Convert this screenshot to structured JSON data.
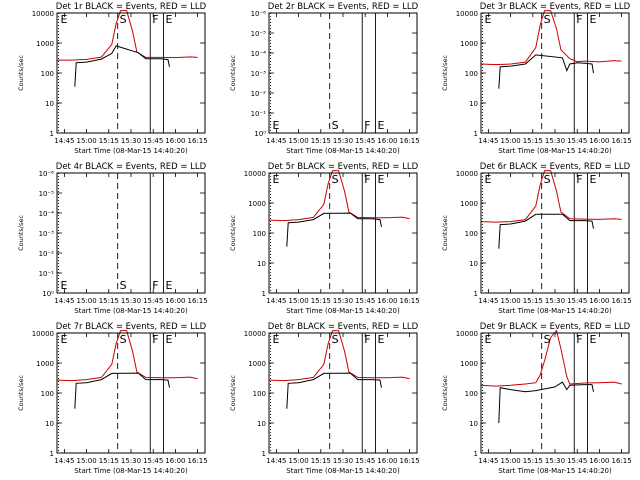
{
  "chart_data": [
    {
      "type": "line",
      "title": "Det 1r BLACK = Events, RED = LLD",
      "xlabel": "Start Time (08-Mar-15 14:40:20)",
      "ylabel": "Counts/sec",
      "x_ticks": [
        "14:45",
        "15:00",
        "15:15",
        "15:30",
        "15:45",
        "16:00",
        "16:15"
      ],
      "y_scale": "log",
      "ylim": [
        1,
        10000
      ],
      "y_ticks": [
        "1",
        "10",
        "100",
        "1000",
        "10000"
      ],
      "markers": [
        {
          "label": "E",
          "time": "14:41",
          "style": "dotted"
        },
        {
          "label": "S",
          "time": "15:21",
          "style": "dashed"
        },
        {
          "label": "F",
          "time": "15:43",
          "style": "solid"
        },
        {
          "label": "E",
          "time": "15:52",
          "style": "solid"
        }
      ],
      "series": [
        {
          "color": "#cc0000",
          "x": [
            "14:40",
            "14:50",
            "15:00",
            "15:10",
            "15:17",
            "15:20",
            "15:23",
            "15:27",
            "15:31",
            "15:34",
            "15:40",
            "15:50",
            "16:00",
            "16:10",
            "16:15"
          ],
          "values": [
            270,
            270,
            285,
            340,
            900,
            4500,
            12000,
            12000,
            2500,
            500,
            330,
            330,
            325,
            345,
            330
          ]
        },
        {
          "color": "#000000",
          "x": [
            "14:52",
            "14:53",
            "15:00",
            "15:10",
            "15:17",
            "15:20",
            "15:35",
            "15:40",
            "15:50",
            "15:55",
            "15:56"
          ],
          "values": [
            35,
            220,
            230,
            290,
            450,
            800,
            470,
            300,
            300,
            280,
            160
          ]
        }
      ]
    },
    {
      "type": "line",
      "title": "Det 2r BLACK = Events, RED = LLD",
      "xlabel": "Start Time (08-Mar-15 14:40:20)",
      "ylabel": "Counts/sec",
      "x_ticks": [
        "14:45",
        "15:00",
        "15:15",
        "15:30",
        "15:45",
        "16:00",
        "16:15"
      ],
      "y_scale": "log",
      "ylim": [
        1,
        1e-06
      ],
      "y_ticks": [
        "10⁰",
        "10⁻¹",
        "10⁻²",
        "10⁻³",
        "10⁻⁴",
        "10⁻⁵",
        "10⁻⁶"
      ],
      "markers": [
        {
          "label": "E",
          "time": "14:41",
          "style": "dotted"
        },
        {
          "label": "S",
          "time": "15:21",
          "style": "dashed"
        },
        {
          "label": "F",
          "time": "15:43",
          "style": "solid"
        },
        {
          "label": "E",
          "time": "15:52",
          "style": "solid"
        }
      ],
      "series": []
    },
    {
      "type": "line",
      "title": "Det 3r BLACK = Events, RED = LLD",
      "xlabel": "Start Time (08-Mar-15 14:40:20)",
      "ylabel": "Counts/sec",
      "x_ticks": [
        "14:45",
        "15:00",
        "15:15",
        "15:30",
        "15:45",
        "16:00",
        "16:15"
      ],
      "y_scale": "log",
      "ylim": [
        1,
        10000
      ],
      "y_ticks": [
        "1",
        "10",
        "100",
        "1000",
        "10000"
      ],
      "markers": [
        {
          "label": "E",
          "time": "14:41",
          "style": "dotted"
        },
        {
          "label": "S",
          "time": "15:21",
          "style": "dashed"
        },
        {
          "label": "F",
          "time": "15:43",
          "style": "solid"
        },
        {
          "label": "E",
          "time": "15:52",
          "style": "solid"
        }
      ],
      "series": [
        {
          "color": "#cc0000",
          "x": [
            "14:40",
            "14:50",
            "15:00",
            "15:10",
            "15:17",
            "15:20",
            "15:23",
            "15:27",
            "15:31",
            "15:34",
            "15:40",
            "15:45",
            "15:50",
            "16:00",
            "16:10",
            "16:15"
          ],
          "values": [
            200,
            190,
            200,
            230,
            700,
            4000,
            12000,
            12000,
            3000,
            600,
            300,
            240,
            250,
            235,
            260,
            250
          ]
        },
        {
          "color": "#000000",
          "x": [
            "14:52",
            "14:53",
            "15:00",
            "15:10",
            "15:17",
            "15:35",
            "15:38",
            "15:40",
            "15:45",
            "15:50",
            "15:55",
            "15:56"
          ],
          "values": [
            30,
            160,
            170,
            200,
            400,
            320,
            120,
            200,
            220,
            210,
            200,
            100
          ]
        }
      ]
    },
    {
      "type": "line",
      "title": "Det 4r BLACK = Events, RED = LLD",
      "xlabel": "Start Time (08-Mar-15 14:40:20)",
      "ylabel": "Counts/sec",
      "x_ticks": [
        "14:45",
        "15:00",
        "15:15",
        "15:30",
        "15:45",
        "16:00",
        "16:15"
      ],
      "y_scale": "log",
      "ylim": [
        1,
        1e-06
      ],
      "y_ticks": [
        "10⁰",
        "10⁻¹",
        "10⁻²",
        "10⁻³",
        "10⁻⁴",
        "10⁻⁵",
        "10⁻⁶"
      ],
      "markers": [
        {
          "label": "E",
          "time": "14:41",
          "style": "dotted"
        },
        {
          "label": "S",
          "time": "15:21",
          "style": "dashed"
        },
        {
          "label": "F",
          "time": "15:43",
          "style": "solid"
        },
        {
          "label": "E",
          "time": "15:52",
          "style": "solid"
        }
      ],
      "series": []
    },
    {
      "type": "line",
      "title": "Det 5r BLACK = Events, RED = LLD",
      "xlabel": "Start Time (08-Mar-15 14:40:20)",
      "ylabel": "Counts/sec",
      "x_ticks": [
        "14:45",
        "15:00",
        "15:15",
        "15:30",
        "15:45",
        "16:00",
        "16:15"
      ],
      "y_scale": "log",
      "ylim": [
        1,
        10000
      ],
      "y_ticks": [
        "1",
        "10",
        "100",
        "1000",
        "10000"
      ],
      "markers": [
        {
          "label": "E",
          "time": "14:41",
          "style": "dotted"
        },
        {
          "label": "S",
          "time": "15:21",
          "style": "dashed"
        },
        {
          "label": "F",
          "time": "15:43",
          "style": "solid"
        },
        {
          "label": "E",
          "time": "15:52",
          "style": "solid"
        }
      ],
      "series": [
        {
          "color": "#cc0000",
          "x": [
            "14:40",
            "14:50",
            "15:00",
            "15:10",
            "15:17",
            "15:20",
            "15:23",
            "15:27",
            "15:31",
            "15:34",
            "15:40",
            "15:50",
            "16:00",
            "16:10",
            "16:15"
          ],
          "values": [
            270,
            260,
            280,
            330,
            900,
            4500,
            12000,
            12000,
            2500,
            500,
            330,
            320,
            320,
            340,
            300
          ]
        },
        {
          "color": "#000000",
          "x": [
            "14:52",
            "14:53",
            "15:00",
            "15:10",
            "15:17",
            "15:35",
            "15:40",
            "15:50",
            "15:55",
            "15:56"
          ],
          "values": [
            35,
            220,
            230,
            280,
            450,
            460,
            300,
            300,
            280,
            160
          ]
        }
      ]
    },
    {
      "type": "line",
      "title": "Det 6r BLACK = Events, RED = LLD",
      "xlabel": "Start Time (08-Mar-15 14:40:20)",
      "ylabel": "Counts/sec",
      "x_ticks": [
        "14:45",
        "15:00",
        "15:15",
        "15:30",
        "15:45",
        "16:00",
        "16:15"
      ],
      "y_scale": "log",
      "ylim": [
        1,
        10000
      ],
      "y_ticks": [
        "1",
        "10",
        "100",
        "1000",
        "10000"
      ],
      "markers": [
        {
          "label": "E",
          "time": "14:41",
          "style": "dotted"
        },
        {
          "label": "S",
          "time": "15:21",
          "style": "dashed"
        },
        {
          "label": "F",
          "time": "15:43",
          "style": "solid"
        },
        {
          "label": "E",
          "time": "15:52",
          "style": "solid"
        }
      ],
      "series": [
        {
          "color": "#cc0000",
          "x": [
            "14:40",
            "14:50",
            "15:00",
            "15:10",
            "15:17",
            "15:20",
            "15:23",
            "15:27",
            "15:31",
            "15:34",
            "15:40",
            "15:50",
            "16:00",
            "16:10",
            "16:15"
          ],
          "values": [
            240,
            230,
            240,
            280,
            800,
            4000,
            12000,
            12000,
            2500,
            500,
            300,
            290,
            285,
            300,
            285
          ]
        },
        {
          "color": "#000000",
          "x": [
            "14:52",
            "14:53",
            "15:00",
            "15:10",
            "15:17",
            "15:35",
            "15:40",
            "15:50",
            "15:55",
            "15:56"
          ],
          "values": [
            30,
            190,
            200,
            250,
            420,
            420,
            260,
            260,
            250,
            140
          ]
        }
      ]
    },
    {
      "type": "line",
      "title": "Det 7r BLACK = Events, RED = LLD",
      "xlabel": "Start Time (08-Mar-15 14:40:20)",
      "ylabel": "Counts/sec",
      "x_ticks": [
        "14:45",
        "15:00",
        "15:15",
        "15:30",
        "15:45",
        "16:00",
        "16:15"
      ],
      "y_scale": "log",
      "ylim": [
        1,
        10000
      ],
      "y_ticks": [
        "1",
        "10",
        "100",
        "1000",
        "10000"
      ],
      "markers": [
        {
          "label": "E",
          "time": "14:41",
          "style": "dotted"
        },
        {
          "label": "S",
          "time": "15:21",
          "style": "dashed"
        },
        {
          "label": "F",
          "time": "15:43",
          "style": "solid"
        },
        {
          "label": "E",
          "time": "15:52",
          "style": "solid"
        }
      ],
      "series": [
        {
          "color": "#cc0000",
          "x": [
            "14:40",
            "14:50",
            "15:00",
            "15:10",
            "15:17",
            "15:20",
            "15:23",
            "15:27",
            "15:31",
            "15:34",
            "15:40",
            "15:50",
            "16:00",
            "16:10",
            "16:15"
          ],
          "values": [
            270,
            260,
            280,
            330,
            900,
            4500,
            12000,
            12000,
            2500,
            500,
            330,
            320,
            320,
            340,
            300
          ]
        },
        {
          "color": "#000000",
          "x": [
            "14:52",
            "14:53",
            "15:00",
            "15:10",
            "15:17",
            "15:35",
            "15:40",
            "15:50",
            "15:55",
            "15:56"
          ],
          "values": [
            30,
            210,
            220,
            280,
            450,
            460,
            280,
            280,
            270,
            150
          ]
        }
      ]
    },
    {
      "type": "line",
      "title": "Det 8r BLACK = Events, RED = LLD",
      "xlabel": "Start Time (08-Mar-15 14:40:20)",
      "ylabel": "Counts/sec",
      "x_ticks": [
        "14:45",
        "15:00",
        "15:15",
        "15:30",
        "15:45",
        "16:00",
        "16:15"
      ],
      "y_scale": "log",
      "ylim": [
        1,
        10000
      ],
      "y_ticks": [
        "1",
        "10",
        "100",
        "1000",
        "10000"
      ],
      "markers": [
        {
          "label": "E",
          "time": "14:41",
          "style": "dotted"
        },
        {
          "label": "S",
          "time": "15:21",
          "style": "dashed"
        },
        {
          "label": "F",
          "time": "15:43",
          "style": "solid"
        },
        {
          "label": "E",
          "time": "15:52",
          "style": "solid"
        }
      ],
      "series": [
        {
          "color": "#cc0000",
          "x": [
            "14:40",
            "14:50",
            "15:00",
            "15:10",
            "15:17",
            "15:20",
            "15:23",
            "15:27",
            "15:31",
            "15:34",
            "15:40",
            "15:50",
            "16:00",
            "16:10",
            "16:15"
          ],
          "values": [
            270,
            260,
            280,
            330,
            900,
            4500,
            12000,
            12000,
            2500,
            500,
            330,
            320,
            320,
            340,
            300
          ]
        },
        {
          "color": "#000000",
          "x": [
            "14:52",
            "14:53",
            "15:00",
            "15:10",
            "15:17",
            "15:35",
            "15:40",
            "15:50",
            "15:55",
            "15:56"
          ],
          "values": [
            30,
            210,
            220,
            280,
            450,
            460,
            280,
            280,
            270,
            150
          ]
        }
      ]
    },
    {
      "type": "line",
      "title": "Det 9r BLACK = Events, RED = LLD",
      "xlabel": "Start Time (08-Mar-15 14:40:20)",
      "ylabel": "Counts/sec",
      "x_ticks": [
        "14:45",
        "15:00",
        "15:15",
        "15:30",
        "15:45",
        "16:00",
        "16:15"
      ],
      "y_scale": "log",
      "ylim": [
        1,
        10000
      ],
      "y_ticks": [
        "1",
        "10",
        "100",
        "1000",
        "10000"
      ],
      "markers": [
        {
          "label": "E",
          "time": "14:41",
          "style": "dotted"
        },
        {
          "label": "S",
          "time": "15:21",
          "style": "dashed"
        },
        {
          "label": "F",
          "time": "15:43",
          "style": "solid"
        },
        {
          "label": "E",
          "time": "15:52",
          "style": "solid"
        }
      ],
      "series": [
        {
          "color": "#cc0000",
          "x": [
            "14:40",
            "14:50",
            "15:00",
            "15:10",
            "15:17",
            "15:20",
            "15:23",
            "15:27",
            "15:31",
            "15:34",
            "15:38",
            "15:40",
            "15:50",
            "16:00",
            "16:10",
            "16:15"
          ],
          "values": [
            180,
            170,
            180,
            200,
            220,
            400,
            1200,
            7000,
            12000,
            3000,
            350,
            200,
            215,
            220,
            230,
            200
          ]
        },
        {
          "color": "#000000",
          "x": [
            "14:52",
            "14:53",
            "15:00",
            "15:10",
            "15:17",
            "15:30",
            "15:35",
            "15:38",
            "15:40",
            "15:50",
            "15:55",
            "15:56"
          ],
          "values": [
            10,
            150,
            130,
            110,
            120,
            160,
            230,
            130,
            180,
            190,
            190,
            110
          ]
        }
      ]
    }
  ]
}
